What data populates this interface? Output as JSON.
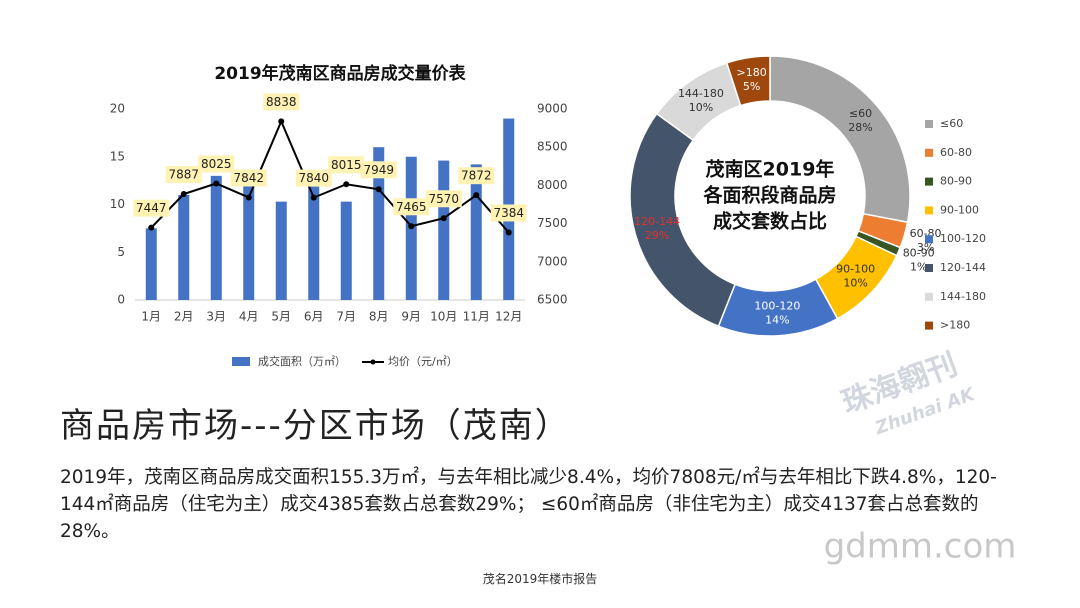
{
  "chart_data": [
    {
      "type": "bar",
      "title": "2019年茂南区商品房成交量价表",
      "categories": [
        "1月",
        "2月",
        "3月",
        "4月",
        "5月",
        "6月",
        "7月",
        "8月",
        "9月",
        "10月",
        "11月",
        "12月"
      ],
      "series": [
        {
          "name": "成交面积（万㎡）",
          "color": "#4472c4",
          "values": [
            7.5,
            11,
            13,
            12.5,
            10.3,
            12,
            10.3,
            16,
            15,
            14.6,
            14.2,
            19
          ]
        },
        {
          "name": "均价（元/㎡）",
          "kind": "line",
          "axis": "y2",
          "color": "#000000",
          "label_color": "#fff2b3",
          "values": [
            7447,
            7887,
            8025,
            7842,
            8838,
            7840,
            8015,
            7949,
            7465,
            7570,
            7872,
            7384
          ]
        }
      ],
      "ylim": [
        0,
        20
      ],
      "yticks": [
        0,
        5,
        10,
        15,
        20
      ],
      "y2lim": [
        6500,
        9000
      ],
      "y2ticks": [
        6500,
        7000,
        7500,
        8000,
        8500,
        9000
      ],
      "legend": "bottom"
    },
    {
      "type": "donut",
      "title": [
        "茂南区2019年",
        "各面积段商品房",
        "成交套数占比"
      ],
      "categories": [
        "≤60",
        "60-80",
        "80-90",
        "90-100",
        "100-120",
        "120-144",
        "144-180",
        ">180"
      ],
      "values": [
        28,
        3,
        1,
        10,
        14,
        29,
        10,
        5
      ],
      "value_labels": [
        "28%",
        "3%",
        "1%",
        "10%",
        "14%",
        "29%",
        "10%",
        "5%"
      ],
      "colors": [
        "#a5a5a5",
        "#ed7d31",
        "#375623",
        "#ffc000",
        "#4472c4",
        "#44546a",
        "#d9d9d9",
        "#9e480e"
      ],
      "legend": "right"
    }
  ],
  "heading": "商品房市场---分区市场（茂南）",
  "body": "2019年，茂南区商品房成交面积155.3万㎡，与去年相比减少8.4%，均价7808元/㎡与去年相比下跌4.8%，120-144㎡商品房（住宅为主）成交4385套数占总套数29%； ≤60㎡商品房（非住宅为主）成交4137套占总套数的28%。",
  "footer": "茂名2019年楼市报告",
  "watermark": {
    "cn": "珠海翱刊",
    "en": "Zhuhai AK",
    "site": "gdmm.com"
  }
}
